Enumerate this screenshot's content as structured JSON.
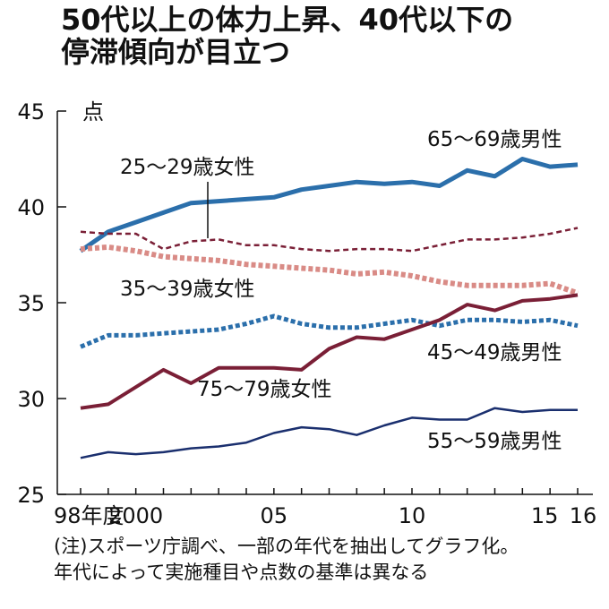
{
  "title_lines": [
    "50代以上の体力上昇、40代以下の",
    "停滞傾向が目立つ"
  ],
  "note_lines": [
    "(注)スポーツ庁調べ、一部の年代を抽出してグラフ化。",
    "年代によって実施種目や点数の基準は異なる"
  ],
  "chart_data": {
    "type": "line",
    "ylabel": "点",
    "ylim": [
      25,
      45
    ],
    "y_ticks": [
      25,
      30,
      35,
      40,
      45
    ],
    "xlim": [
      1998,
      2016
    ],
    "x": [
      1998,
      1999,
      2000,
      2001,
      2002,
      2003,
      2004,
      2005,
      2006,
      2007,
      2008,
      2009,
      2010,
      2011,
      2012,
      2013,
      2014,
      2015,
      2016
    ],
    "x_ticks": [
      {
        "x": 1998,
        "label": "98年度"
      },
      {
        "x": 2000,
        "label": "2000"
      },
      {
        "x": 2005,
        "label": "05"
      },
      {
        "x": 2010,
        "label": "10"
      },
      {
        "x": 2015,
        "label": "15"
      },
      {
        "x": 2016,
        "label": "16"
      }
    ],
    "series": [
      {
        "name": "65〜69歳男性",
        "color": "#2b6fab",
        "dash": "solid",
        "width": 5,
        "values": [
          37.7,
          38.7,
          39.2,
          39.7,
          40.2,
          40.3,
          40.4,
          40.5,
          40.9,
          41.1,
          41.3,
          41.2,
          41.3,
          41.1,
          41.9,
          41.6,
          42.5,
          42.1,
          42.2
        ]
      },
      {
        "name": "25〜29歳女性",
        "color": "#7a1f36",
        "dash": "dashed",
        "width": 2.5,
        "values": [
          38.7,
          38.6,
          38.6,
          37.8,
          38.2,
          38.3,
          38.0,
          38.0,
          37.8,
          37.7,
          37.8,
          37.8,
          37.7,
          38.0,
          38.3,
          38.3,
          38.4,
          38.6,
          38.9
        ]
      },
      {
        "name": "35〜39歳女性",
        "color": "#d98b86",
        "dash": "dotted",
        "width": 6,
        "values": [
          37.8,
          37.9,
          37.7,
          37.4,
          37.3,
          37.2,
          37.0,
          36.9,
          36.8,
          36.7,
          36.5,
          36.6,
          36.4,
          36.1,
          35.9,
          35.9,
          35.9,
          36.0,
          35.5
        ]
      },
      {
        "name": "45〜49歳男性",
        "color": "#2b6fab",
        "dash": "dotted",
        "width": 5,
        "values": [
          32.7,
          33.3,
          33.3,
          33.4,
          33.5,
          33.6,
          33.9,
          34.3,
          33.9,
          33.7,
          33.7,
          33.9,
          34.1,
          33.8,
          34.1,
          34.1,
          34.0,
          34.1,
          33.8
        ]
      },
      {
        "name": "75〜79歳女性",
        "color": "#7a1f36",
        "dash": "solid",
        "width": 4,
        "values": [
          29.5,
          29.7,
          30.6,
          31.5,
          30.8,
          31.6,
          31.6,
          31.6,
          31.5,
          32.6,
          33.2,
          33.1,
          33.6,
          34.1,
          34.9,
          34.6,
          35.1,
          35.2,
          35.4
        ]
      },
      {
        "name": "55〜59歳男性",
        "color": "#1a2f6e",
        "dash": "solid",
        "width": 2.5,
        "values": [
          26.9,
          27.2,
          27.1,
          27.2,
          27.4,
          27.5,
          27.7,
          28.2,
          28.5,
          28.4,
          28.1,
          28.6,
          29.0,
          28.9,
          28.9,
          29.5,
          29.3,
          29.4,
          29.4
        ]
      }
    ]
  }
}
